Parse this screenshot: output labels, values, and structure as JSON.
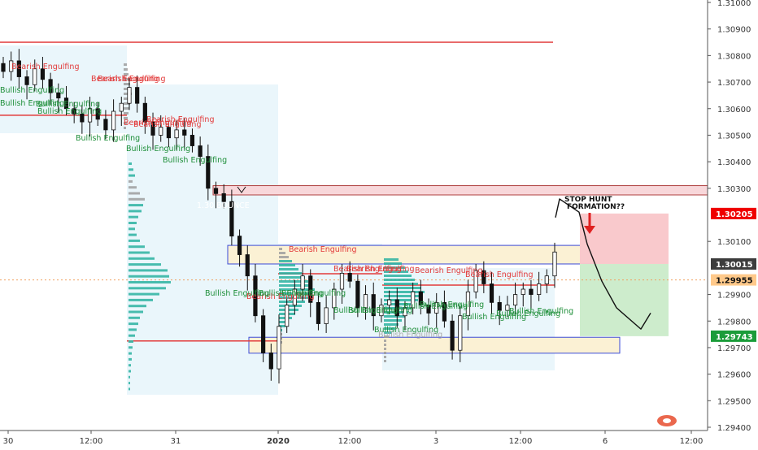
{
  "chart_data": {
    "type": "candlestick",
    "symbol_note": "GBP/USD style intraday chart",
    "ylim": [
      1.2939,
      1.3101
    ],
    "price_ticks": [
      "1.31000",
      "1.30900",
      "1.30800",
      "1.30700",
      "1.30600",
      "1.30500",
      "1.30400",
      "1.30300",
      "1.30100",
      "1.29900",
      "1.29800",
      "1.29700",
      "1.29600",
      "1.29500",
      "1.29400"
    ],
    "time_ticks": [
      {
        "label": "30",
        "bold": false
      },
      {
        "label": "12:00",
        "bold": false
      },
      {
        "label": "31",
        "bold": false
      },
      {
        "label": "2020",
        "bold": true
      },
      {
        "label": "12:00",
        "bold": false
      },
      {
        "label": "3",
        "bold": false
      },
      {
        "label": "12:00",
        "bold": false
      },
      {
        "label": "6",
        "bold": false
      },
      {
        "label": "12:00",
        "bold": false
      }
    ],
    "price_labels": [
      {
        "text": "1.30205",
        "value": 1.30205,
        "bg": "#ef0000",
        "fg": "#ffffff"
      },
      {
        "text": "1.30015",
        "value": 1.30015,
        "bg": "#3c3c3c",
        "fg": "#ffffff"
      },
      {
        "text": "1.29955",
        "value": 1.29955,
        "bg": "#ffc98a",
        "fg": "#111111"
      },
      {
        "text": "1.29743",
        "value": 1.29743,
        "bg": "#1b9c3a",
        "fg": "#ffffff"
      }
    ],
    "horizontal_levels": [
      {
        "value": 1.3085,
        "color": "#e23a3a"
      },
      {
        "value": 1.30575,
        "color": "#e23a3a"
      },
      {
        "value": 1.29725,
        "color": "#e23a3a"
      },
      {
        "value": 1.2995,
        "color": "#e23a3a"
      },
      {
        "value": 1.29955,
        "color": "#f0a060",
        "dashed": true
      }
    ],
    "zones": [
      {
        "name": "supply-zone",
        "y_top": 1.3031,
        "y_bottom": 1.30275,
        "fill": "#f8d7da",
        "stroke": "#b04040"
      },
      {
        "name": "upper-range-zone",
        "y_top": 1.30085,
        "y_bottom": 1.30015,
        "fill": "#fbf1d4",
        "stroke": "#3b4bd8"
      },
      {
        "name": "lower-range-zone",
        "y_top": 1.29745,
        "y_bottom": 1.29685,
        "fill": "#fbf1d4",
        "stroke": "#3b4bd8"
      }
    ],
    "trade": {
      "stop": 1.30205,
      "entry": 1.30015,
      "target": 1.29743,
      "stop_fill": "#f9c9cc",
      "target_fill": "#cdeccc"
    },
    "annotations": {
      "stop_hunt": "STOP HUNT\nFORMATION??",
      "bearish_label": "Bearish Engulfing",
      "bullish_label": "Bullish Engulfing",
      "small_mid_text": "1.30 BOUNCE",
      "bearish_color": "#e23a3a",
      "bullish_color": "#1f8f3a"
    },
    "series": [
      {
        "name": "price",
        "values": [
          1.3074,
          1.3078,
          1.3072,
          1.3069,
          1.3075,
          1.3071,
          1.3066,
          1.3064,
          1.306,
          1.3058,
          1.3055,
          1.306,
          1.3056,
          1.3052,
          1.3059,
          1.3062,
          1.3068,
          1.3062,
          1.3055,
          1.305,
          1.3053,
          1.3049,
          1.3052,
          1.305,
          1.3046,
          1.3042,
          1.303,
          1.3028,
          1.3025,
          1.3012,
          1.3005,
          1.2997,
          1.2982,
          1.2968,
          1.2962,
          1.2978,
          1.2986,
          1.2992,
          1.2997,
          1.2987,
          1.2979,
          1.2985,
          1.2992,
          1.2998,
          1.2995,
          1.2985,
          1.299,
          1.2982,
          1.2986,
          1.2988,
          1.2982,
          1.2985,
          1.2991,
          1.2986,
          1.2983,
          1.2987,
          1.298,
          1.2969,
          1.2982,
          1.2991,
          1.2999,
          1.2994,
          1.2987,
          1.2984,
          1.2986,
          1.299,
          1.2992,
          1.299,
          1.2994,
          1.2997,
          1.3006
        ]
      },
      {
        "name": "projection",
        "values": [
          1.3019,
          1.3026,
          1.3021,
          1.3009,
          1.2995,
          1.2985,
          1.2977,
          1.2983
        ]
      }
    ]
  }
}
